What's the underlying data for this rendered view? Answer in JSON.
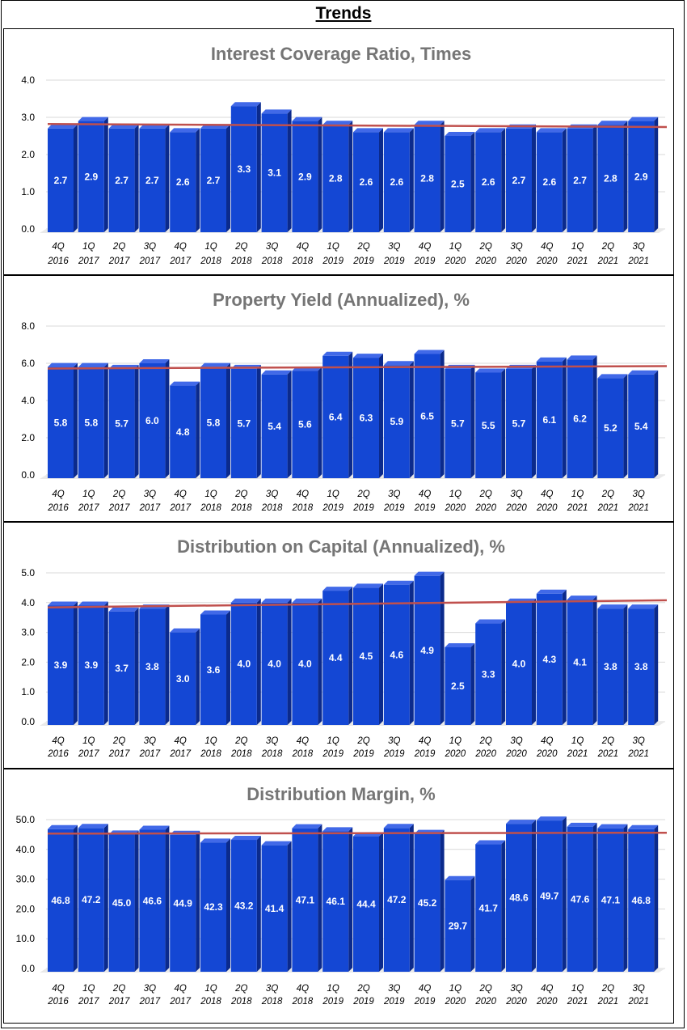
{
  "page_title": "Trends",
  "colors": {
    "bar_front": "#1447D4",
    "bar_side": "#0B2A8C",
    "bar_top": "#4169E8",
    "trend_line": "#C0504D",
    "grid": "#D9D9D9"
  },
  "chart_data": [
    {
      "type": "bar",
      "title": "Interest Coverage Ratio, Times",
      "categories": [
        [
          "4Q",
          "2016"
        ],
        [
          "1Q",
          "2017"
        ],
        [
          "2Q",
          "2017"
        ],
        [
          "3Q",
          "2017"
        ],
        [
          "4Q",
          "2017"
        ],
        [
          "1Q",
          "2018"
        ],
        [
          "2Q",
          "2018"
        ],
        [
          "3Q",
          "2018"
        ],
        [
          "4Q",
          "2018"
        ],
        [
          "1Q",
          "2019"
        ],
        [
          "2Q",
          "2019"
        ],
        [
          "3Q",
          "2019"
        ],
        [
          "4Q",
          "2019"
        ],
        [
          "1Q",
          "2020"
        ],
        [
          "2Q",
          "2020"
        ],
        [
          "3Q",
          "2020"
        ],
        [
          "4Q",
          "2020"
        ],
        [
          "1Q",
          "2021"
        ],
        [
          "2Q",
          "2021"
        ],
        [
          "3Q",
          "2021"
        ]
      ],
      "values": [
        2.7,
        2.9,
        2.7,
        2.7,
        2.6,
        2.7,
        3.3,
        3.1,
        2.9,
        2.8,
        2.6,
        2.6,
        2.8,
        2.5,
        2.6,
        2.7,
        2.6,
        2.7,
        2.8,
        2.9
      ],
      "value_labels": [
        "2.7",
        "2.9",
        "2.7",
        "2.7",
        "2.6",
        "2.7",
        "3.3",
        "3.1",
        "2.9",
        "2.8",
        "2.6",
        "2.6",
        "2.8",
        "2.5",
        "2.6",
        "2.7",
        "2.6",
        "2.7",
        "2.8",
        "2.9"
      ],
      "yticks": [
        "0.0",
        "1.0",
        "2.0",
        "3.0",
        "4.0"
      ],
      "ylim": [
        0,
        4
      ],
      "trendline": [
        2.82,
        2.74
      ]
    },
    {
      "type": "bar",
      "title": "Property Yield (Annualized), %",
      "categories": [
        [
          "4Q",
          "2016"
        ],
        [
          "1Q",
          "2017"
        ],
        [
          "2Q",
          "2017"
        ],
        [
          "3Q",
          "2017"
        ],
        [
          "4Q",
          "2017"
        ],
        [
          "1Q",
          "2018"
        ],
        [
          "2Q",
          "2018"
        ],
        [
          "3Q",
          "2018"
        ],
        [
          "4Q",
          "2018"
        ],
        [
          "1Q",
          "2019"
        ],
        [
          "2Q",
          "2019"
        ],
        [
          "3Q",
          "2019"
        ],
        [
          "4Q",
          "2019"
        ],
        [
          "1Q",
          "2020"
        ],
        [
          "2Q",
          "2020"
        ],
        [
          "3Q",
          "2020"
        ],
        [
          "4Q",
          "2020"
        ],
        [
          "1Q",
          "2021"
        ],
        [
          "2Q",
          "2021"
        ],
        [
          "3Q",
          "2021"
        ]
      ],
      "values": [
        5.8,
        5.8,
        5.7,
        6.0,
        4.8,
        5.8,
        5.7,
        5.4,
        5.6,
        6.4,
        6.3,
        5.9,
        6.5,
        5.7,
        5.5,
        5.7,
        6.1,
        6.2,
        5.2,
        5.4
      ],
      "value_labels": [
        "5.8",
        "5.8",
        "5.7",
        "6.0",
        "4.8",
        "5.8",
        "5.7",
        "5.4",
        "5.6",
        "6.4",
        "6.3",
        "5.9",
        "6.5",
        "5.7",
        "5.5",
        "5.7",
        "6.1",
        "6.2",
        "5.2",
        "5.4"
      ],
      "yticks": [
        "0.0",
        "2.0",
        "4.0",
        "6.0",
        "8.0"
      ],
      "ylim": [
        0,
        8
      ],
      "trendline": [
        5.72,
        5.85
      ]
    },
    {
      "type": "bar",
      "title": "Distribution on Capital (Annualized), %",
      "categories": [
        [
          "4Q",
          "2016"
        ],
        [
          "1Q",
          "2017"
        ],
        [
          "2Q",
          "2017"
        ],
        [
          "3Q",
          "2017"
        ],
        [
          "4Q",
          "2017"
        ],
        [
          "1Q",
          "2018"
        ],
        [
          "2Q",
          "2018"
        ],
        [
          "3Q",
          "2018"
        ],
        [
          "4Q",
          "2018"
        ],
        [
          "1Q",
          "2019"
        ],
        [
          "2Q",
          "2019"
        ],
        [
          "3Q",
          "2019"
        ],
        [
          "4Q",
          "2019"
        ],
        [
          "1Q",
          "2020"
        ],
        [
          "2Q",
          "2020"
        ],
        [
          "3Q",
          "2020"
        ],
        [
          "4Q",
          "2020"
        ],
        [
          "1Q",
          "2021"
        ],
        [
          "2Q",
          "2021"
        ],
        [
          "3Q",
          "2021"
        ]
      ],
      "values": [
        3.9,
        3.9,
        3.7,
        3.8,
        3.0,
        3.6,
        4.0,
        4.0,
        4.0,
        4.4,
        4.5,
        4.6,
        4.9,
        2.5,
        3.3,
        4.0,
        4.3,
        4.1,
        3.8,
        3.8
      ],
      "value_labels": [
        "3.9",
        "3.9",
        "3.7",
        "3.8",
        "3.0",
        "3.6",
        "4.0",
        "4.0",
        "4.0",
        "4.4",
        "4.5",
        "4.6",
        "4.9",
        "2.5",
        "3.3",
        "4.0",
        "4.3",
        "4.1",
        "3.8",
        "3.8"
      ],
      "yticks": [
        "0.0",
        "1.0",
        "2.0",
        "3.0",
        "4.0",
        "5.0"
      ],
      "ylim": [
        0,
        5
      ],
      "trendline": [
        3.84,
        4.08
      ]
    },
    {
      "type": "bar",
      "title": "Distribution Margin, %",
      "categories": [
        [
          "4Q",
          "2016"
        ],
        [
          "1Q",
          "2017"
        ],
        [
          "2Q",
          "2017"
        ],
        [
          "3Q",
          "2017"
        ],
        [
          "4Q",
          "2017"
        ],
        [
          "1Q",
          "2018"
        ],
        [
          "2Q",
          "2018"
        ],
        [
          "3Q",
          "2018"
        ],
        [
          "4Q",
          "2018"
        ],
        [
          "1Q",
          "2019"
        ],
        [
          "2Q",
          "2019"
        ],
        [
          "3Q",
          "2019"
        ],
        [
          "4Q",
          "2019"
        ],
        [
          "1Q",
          "2020"
        ],
        [
          "2Q",
          "2020"
        ],
        [
          "3Q",
          "2020"
        ],
        [
          "4Q",
          "2020"
        ],
        [
          "1Q",
          "2021"
        ],
        [
          "2Q",
          "2021"
        ],
        [
          "3Q",
          "2021"
        ]
      ],
      "values": [
        46.8,
        47.2,
        45.0,
        46.6,
        44.9,
        42.3,
        43.2,
        41.4,
        47.1,
        46.1,
        44.4,
        47.2,
        45.2,
        29.7,
        41.7,
        48.6,
        49.7,
        47.6,
        47.1,
        46.8
      ],
      "value_labels": [
        "46.8",
        "47.2",
        "45.0",
        "46.6",
        "44.9",
        "42.3",
        "43.2",
        "41.4",
        "47.1",
        "46.1",
        "44.4",
        "47.2",
        "45.2",
        "29.7",
        "41.7",
        "48.6",
        "49.7",
        "47.6",
        "47.1",
        "46.8"
      ],
      "yticks": [
        "0.0",
        "10.0",
        "20.0",
        "30.0",
        "40.0",
        "50.0"
      ],
      "ylim": [
        0,
        50
      ],
      "trendline": [
        45.3,
        45.6
      ]
    }
  ]
}
